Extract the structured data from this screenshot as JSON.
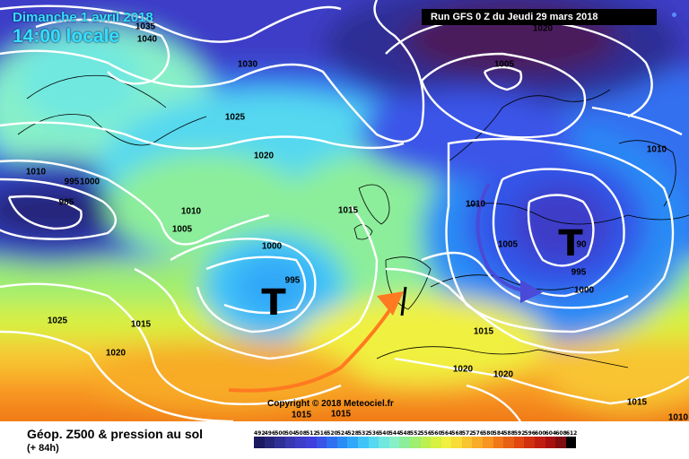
{
  "header": {
    "date": "Dimanche 1 avril 2018",
    "time": "14:00 locale",
    "run": "Run GFS 0 Z du Jeudi 29 mars 2018"
  },
  "map": {
    "isobar_labels": [
      {
        "id": "1035",
        "text": "1035"
      },
      {
        "id": "1040",
        "text": "1040"
      },
      {
        "id": "1030",
        "text": "1030"
      },
      {
        "id": "1020a",
        "text": "1020"
      },
      {
        "id": "1005a",
        "text": "1005"
      },
      {
        "id": "1025a",
        "text": "1025"
      },
      {
        "id": "1020b",
        "text": "1020"
      },
      {
        "id": "1010a",
        "text": "1010"
      },
      {
        "id": "995a",
        "text": "995"
      },
      {
        "id": "1000a",
        "text": "1000"
      },
      {
        "id": "985",
        "text": "985"
      },
      {
        "id": "1010b",
        "text": "1010"
      },
      {
        "id": "1005b",
        "text": "1005"
      },
      {
        "id": "1000b",
        "text": "1000"
      },
      {
        "id": "995b",
        "text": "995"
      },
      {
        "id": "1015a",
        "text": "1015"
      },
      {
        "id": "1010c",
        "text": "1010"
      },
      {
        "id": "1005c",
        "text": "1005"
      },
      {
        "id": "990",
        "text": "90"
      },
      {
        "id": "995c",
        "text": "995"
      },
      {
        "id": "1000c",
        "text": "1000"
      },
      {
        "id": "1010d",
        "text": "1010"
      },
      {
        "id": "1025b",
        "text": "1025"
      },
      {
        "id": "1015b",
        "text": "1015"
      },
      {
        "id": "1020c",
        "text": "1020"
      },
      {
        "id": "1015c",
        "text": "1015"
      },
      {
        "id": "1020d",
        "text": "1020"
      },
      {
        "id": "1020e",
        "text": "1020"
      },
      {
        "id": "1015d",
        "text": "1015"
      },
      {
        "id": "1015e",
        "text": "1015"
      },
      {
        "id": "1015f",
        "text": "1015"
      },
      {
        "id": "1010e",
        "text": "1010"
      }
    ],
    "lows": [
      "T",
      "T"
    ],
    "copyright": "Copyright © 2018 Meteociel.fr",
    "colors": {
      "arrow_orange": "#ff7a20",
      "arrow_blue": "#4a4ad8"
    }
  },
  "footer": {
    "title": "Géop. Z500 & pression au sol",
    "subtitle": "(+ 84h)"
  },
  "legend": {
    "labels": [
      "492",
      "496",
      "500",
      "504",
      "508",
      "512",
      "516",
      "520",
      "524",
      "528",
      "532",
      "536",
      "540",
      "544",
      "548",
      "552",
      "556",
      "560",
      "564",
      "568",
      "572",
      "576",
      "580",
      "584",
      "588",
      "592",
      "596",
      "600",
      "604",
      "608",
      "612"
    ],
    "colors": [
      "#1a1a60",
      "#25257a",
      "#2f2f95",
      "#3838b0",
      "#3d3dc8",
      "#4040dd",
      "#3a55e8",
      "#3070f0",
      "#2a8cf5",
      "#30a8f8",
      "#40c4f8",
      "#55d8f0",
      "#70e8e0",
      "#88f0c8",
      "#8cee9a",
      "#a0ee70",
      "#bcf050",
      "#d8f040",
      "#f0f040",
      "#f8dc38",
      "#f8c430",
      "#f8ac28",
      "#f89420",
      "#f07818",
      "#e86014",
      "#e04810",
      "#d0300c",
      "#c01c10",
      "#a81010",
      "#800c10",
      "#000000"
    ]
  }
}
